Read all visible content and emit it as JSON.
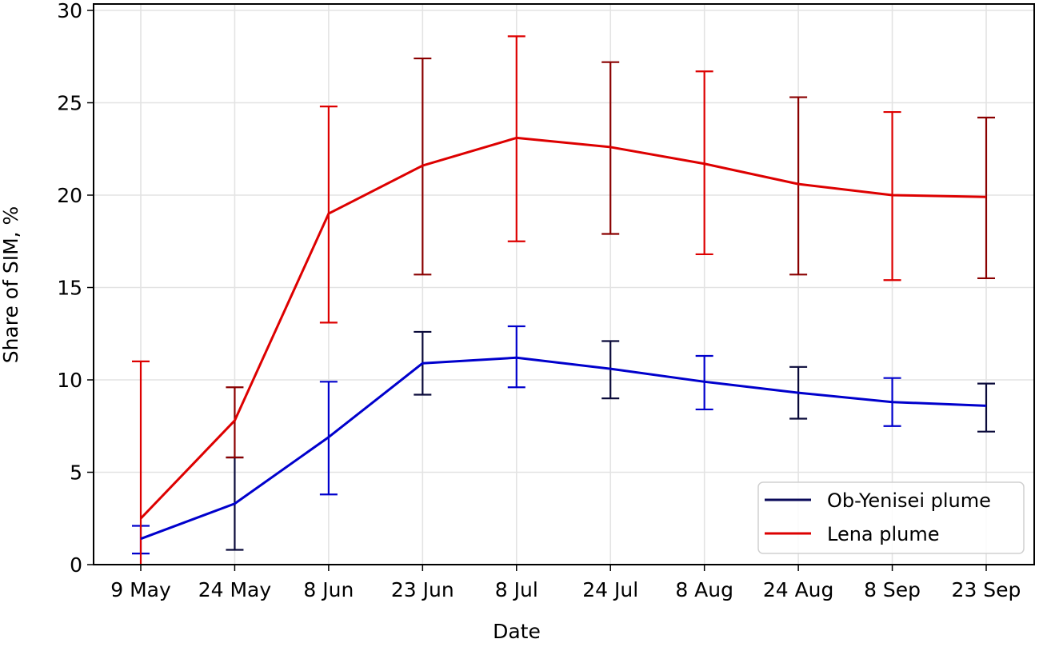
{
  "chart_data": {
    "type": "line",
    "title": "",
    "xlabel": "Date",
    "ylabel": "Share of SIM, %",
    "ylim": [
      0,
      30
    ],
    "yticks": [
      0,
      5,
      10,
      15,
      20,
      25,
      30
    ],
    "grid": true,
    "legend_position": "lower right",
    "categories": [
      "9 May",
      "24 May",
      "8 Jun",
      "23 Jun",
      "8 Jul",
      "24 Jul",
      "8 Aug",
      "24 Aug",
      "8 Sep",
      "23 Sep"
    ],
    "series": [
      {
        "name": "Ob-Yenisei plume",
        "color": "#0000cc",
        "cap_color": "#0a0a3a",
        "values": [
          1.4,
          3.3,
          6.9,
          10.9,
          11.2,
          10.6,
          9.9,
          9.3,
          8.8,
          8.6
        ],
        "error_upper": [
          2.1,
          5.8,
          9.9,
          12.6,
          12.9,
          12.1,
          11.3,
          10.7,
          10.1,
          9.8
        ],
        "error_lower": [
          0.6,
          0.8,
          3.8,
          9.2,
          9.6,
          9.0,
          8.4,
          7.9,
          7.5,
          7.2
        ]
      },
      {
        "name": "Lena plume",
        "color": "#dd0000",
        "cap_color": "#8a0000",
        "values": [
          2.5,
          7.8,
          19.0,
          21.6,
          23.1,
          22.6,
          21.7,
          20.6,
          20.0,
          19.9
        ],
        "error_upper": [
          11.0,
          9.6,
          24.8,
          27.4,
          28.6,
          27.2,
          26.7,
          25.3,
          24.5,
          24.2
        ],
        "error_lower": [
          0.0,
          5.8,
          13.1,
          15.7,
          17.5,
          17.9,
          16.8,
          15.7,
          15.4,
          15.5
        ]
      }
    ]
  },
  "axes": {
    "x_title": "Date",
    "y_title": "Share of SIM, %"
  },
  "legend": {
    "items": [
      {
        "label": "Ob-Yenisei plume",
        "color": "#0a0a5a"
      },
      {
        "label": "Lena plume",
        "color": "#dd0000"
      }
    ]
  }
}
